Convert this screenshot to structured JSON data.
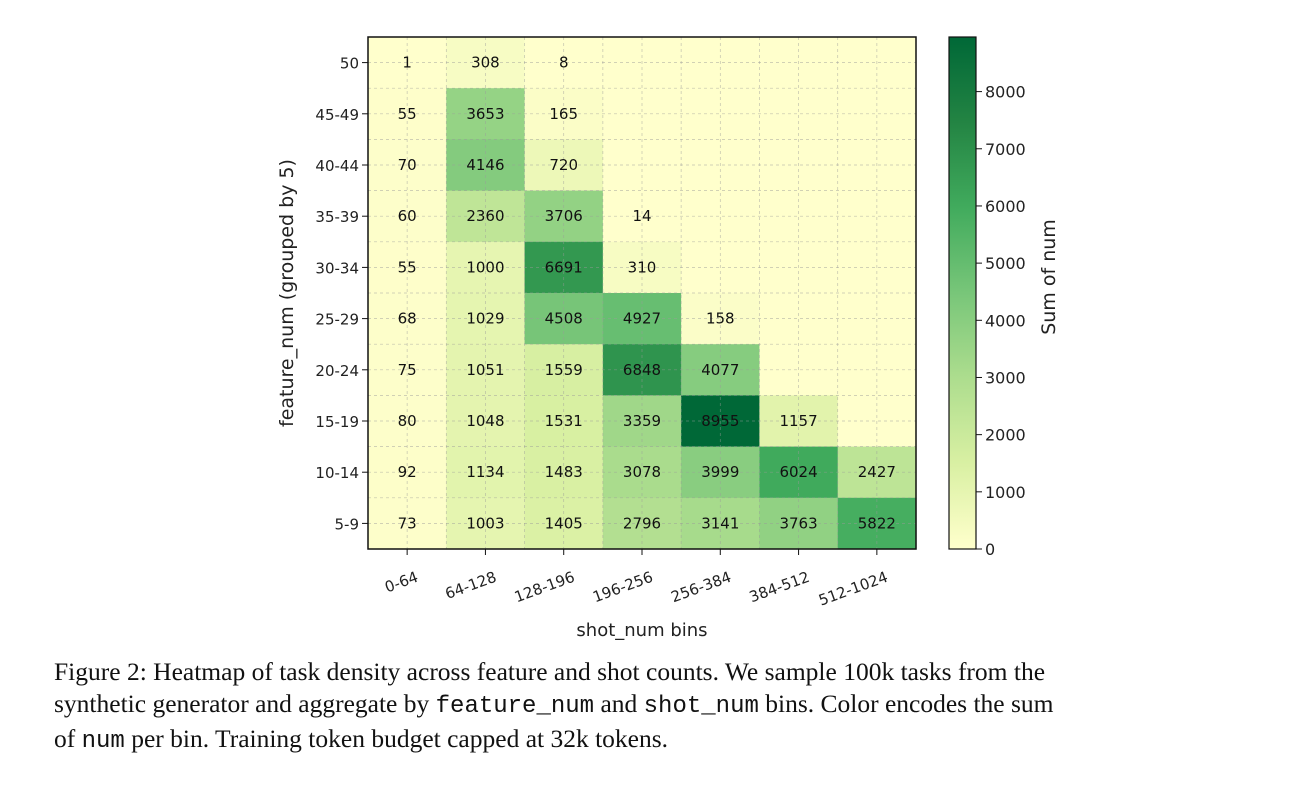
{
  "chart_data": {
    "type": "heatmap",
    "xlabel": "shot_num bins",
    "ylabel": "feature_num (grouped by 5)",
    "x_categories": [
      "0-64",
      "64-128",
      "128-196",
      "196-256",
      "256-384",
      "384-512",
      "512-1024"
    ],
    "y_categories": [
      "50",
      "45-49",
      "40-44",
      "35-39",
      "30-34",
      "25-29",
      "20-24",
      "15-19",
      "10-14",
      "5-9"
    ],
    "values": [
      [
        1,
        308,
        8,
        null,
        null,
        null,
        null
      ],
      [
        55,
        3653,
        165,
        null,
        null,
        null,
        null
      ],
      [
        70,
        4146,
        720,
        null,
        null,
        null,
        null
      ],
      [
        60,
        2360,
        3706,
        14,
        null,
        null,
        null
      ],
      [
        55,
        1000,
        6691,
        310,
        null,
        null,
        null
      ],
      [
        68,
        1029,
        4508,
        4927,
        158,
        null,
        null
      ],
      [
        75,
        1051,
        1559,
        6848,
        4077,
        null,
        null
      ],
      [
        80,
        1048,
        1531,
        3359,
        8955,
        1157,
        null
      ],
      [
        92,
        1134,
        1483,
        3078,
        3999,
        6024,
        2427
      ],
      [
        73,
        1003,
        1405,
        2796,
        3141,
        3763,
        5822
      ]
    ],
    "colorbar": {
      "label": "Sum of num",
      "range": [
        0,
        8955
      ],
      "ticks": [
        0,
        1000,
        2000,
        3000,
        4000,
        5000,
        6000,
        7000,
        8000
      ],
      "colormap": "YlGn",
      "colormap_stops": [
        "#ffffcc",
        "#d9f0a3",
        "#addd8e",
        "#78c679",
        "#41ab5d",
        "#238443",
        "#006837"
      ]
    },
    "grid": true
  },
  "caption": {
    "line1": "Figure 2: Heatmap of task density across feature and shot counts. We sample 100k tasks from the",
    "line2_a": "synthetic generator and aggregate by ",
    "line2_code1": "feature_num",
    "line2_b": " and ",
    "line2_code2": "shot_num",
    "line2_c": " bins. Color encodes the sum",
    "line3_a": "of ",
    "line3_code": "num",
    "line3_b": " per bin. Training token budget capped at 32k tokens."
  }
}
